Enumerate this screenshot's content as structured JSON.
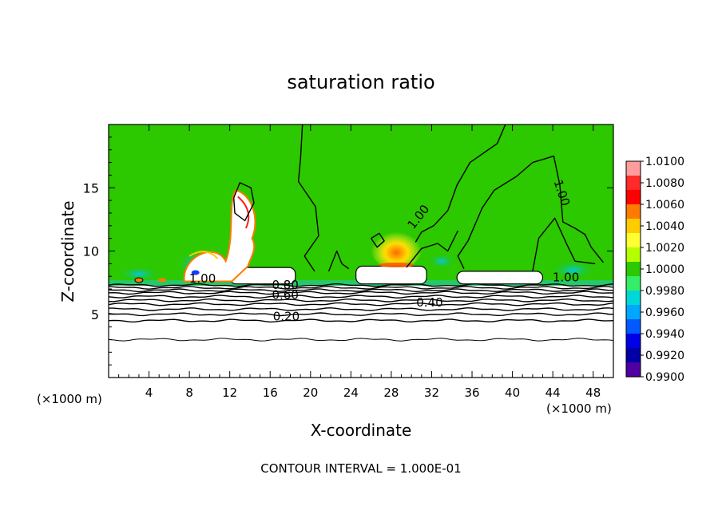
{
  "chart_data": {
    "type": "heatmap",
    "title": "saturation ratio",
    "xlabel": "X-coordinate",
    "ylabel": "Z-coordinate",
    "x_unit_label": "(×1000 m)",
    "y_unit_label": "(×1000 m)",
    "xlim": [
      0,
      50
    ],
    "ylim": [
      0,
      20
    ],
    "x_ticks": [
      4,
      8,
      12,
      16,
      20,
      24,
      28,
      32,
      36,
      40,
      44,
      48
    ],
    "y_ticks": [
      5,
      10,
      15
    ],
    "footer": "CONTOUR INTERVAL = 1.000E-01",
    "colorbar": {
      "labels": [
        "1.0100",
        "1.0080",
        "1.0060",
        "1.0040",
        "1.0020",
        "1.0000",
        "0.9980",
        "0.9960",
        "0.9940",
        "0.9920",
        "0.9900"
      ],
      "colors": [
        "#ff9c9c",
        "#ff2a2a",
        "#ff0000",
        "#ff7a00",
        "#ffcc00",
        "#ffff33",
        "#b4ff00",
        "#2cc800",
        "#33ee66",
        "#00d7d7",
        "#00a7ff",
        "#005aff",
        "#0000e6",
        "#0000a6",
        "#5000a0"
      ]
    },
    "contour_labels": [
      {
        "text": "1.00",
        "x": 9.3,
        "z": 7.5
      },
      {
        "text": "0.80",
        "x": 17.5,
        "z": 7.0
      },
      {
        "text": "0.60",
        "x": 17.5,
        "z": 6.2
      },
      {
        "text": "0.40",
        "x": 31.8,
        "z": 5.6
      },
      {
        "text": "0.20",
        "x": 17.6,
        "z": 4.5
      },
      {
        "text": "1.00",
        "x": 31.0,
        "z": 12.5
      },
      {
        "text": "1.00",
        "x": 44.5,
        "z": 14.5
      },
      {
        "text": "1.00",
        "x": 45.3,
        "z": 7.6
      }
    ],
    "contour_levels_z": [
      7.3,
      7.1,
      6.9,
      6.7,
      6.4,
      6.1,
      5.8,
      5.4,
      5.0,
      4.5,
      3.0
    ],
    "cloud_regions": [
      {
        "x1": 12.0,
        "x2": 18.5,
        "z1": 7.4,
        "z2": 8.7
      },
      {
        "x1": 24.5,
        "x2": 31.5,
        "z1": 7.4,
        "z2": 8.8
      },
      {
        "x1": 34.5,
        "x2": 43.0,
        "z1": 7.4,
        "z2": 8.4
      }
    ]
  }
}
